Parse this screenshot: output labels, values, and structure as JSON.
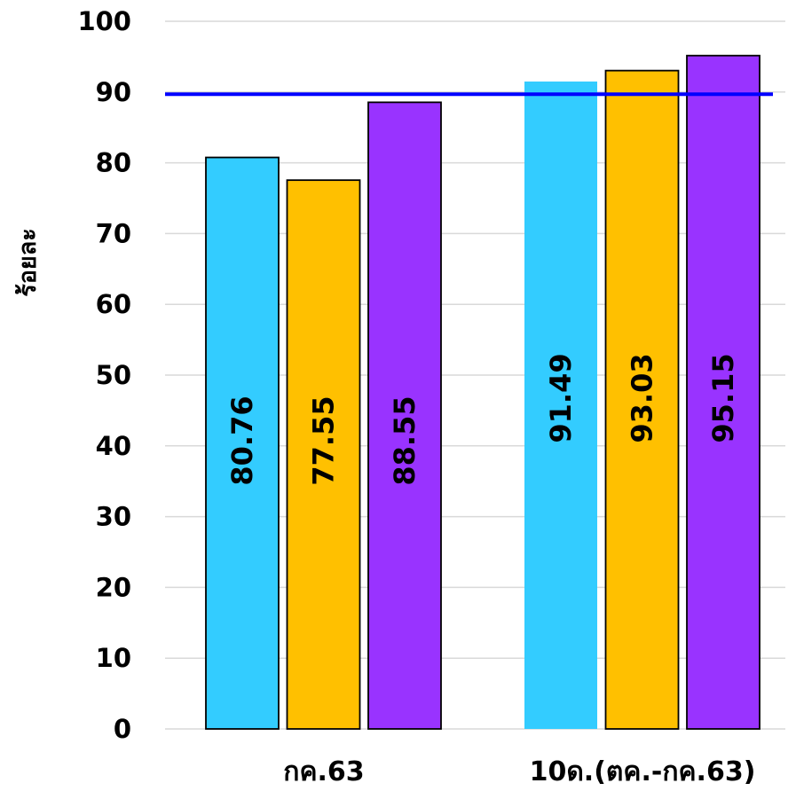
{
  "chart_data": {
    "type": "bar",
    "ylabel": "ร้อยละ",
    "ylim": [
      0,
      100
    ],
    "yticks": [
      0,
      10,
      20,
      30,
      40,
      50,
      60,
      70,
      80,
      90,
      100
    ],
    "grid": true,
    "categories": [
      "กค.63",
      "10ด.(ตค.-กค.63)"
    ],
    "series": [
      {
        "color": "#33CCFF",
        "values": [
          80.76,
          91.49
        ]
      },
      {
        "color": "#FFC000",
        "values": [
          77.55,
          93.03
        ]
      },
      {
        "color": "#9933FF",
        "values": [
          88.55,
          95.15
        ]
      }
    ],
    "data_labels": [
      [
        "80.76",
        "91.49"
      ],
      [
        "77.55",
        "93.03"
      ],
      [
        "88.55",
        "95.15"
      ]
    ],
    "target_line": {
      "value": 89.7,
      "color": "#0000FF"
    }
  }
}
